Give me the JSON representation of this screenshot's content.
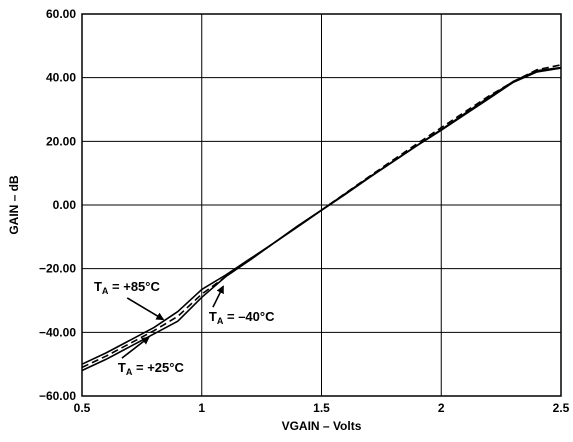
{
  "chart_data": {
    "type": "line",
    "title": "",
    "xlabel": "VGAIN – Volts",
    "ylabel": "GAIN – dB",
    "xlim": [
      0.5,
      2.5
    ],
    "ylim": [
      -60,
      60
    ],
    "x_ticks": [
      "0.5",
      "1",
      "1.5",
      "2",
      "2.5"
    ],
    "y_ticks": [
      "-60.00",
      "-40.00",
      "-20.00",
      "0.00",
      "20.00",
      "40.00",
      "60.00"
    ],
    "grid": true,
    "series": [
      {
        "name": "TA = +85°C",
        "style": "solid",
        "x": [
          0.5,
          0.6,
          0.7,
          0.8,
          0.9,
          1.0,
          1.1,
          1.2,
          1.3,
          1.4,
          1.5,
          1.6,
          1.7,
          1.8,
          1.9,
          2.0,
          2.1,
          2.2,
          2.3,
          2.4,
          2.5
        ],
        "y": [
          -50,
          -46.5,
          -42.5,
          -38.5,
          -33.5,
          -26.5,
          -22,
          -17,
          -12,
          -6.6,
          -1.6,
          3.6,
          8.8,
          13.8,
          18.8,
          23.7,
          28.8,
          33.9,
          38.8,
          42.2,
          43.2
        ]
      },
      {
        "name": "TA = +25°C",
        "style": "dashed",
        "x": [
          0.5,
          0.6,
          0.7,
          0.8,
          0.9,
          1.0,
          1.1,
          1.2,
          1.3,
          1.4,
          1.5,
          1.6,
          1.7,
          1.8,
          1.9,
          2.0,
          2.1,
          2.2,
          2.3,
          2.4,
          2.5
        ],
        "y": [
          -51,
          -47.5,
          -43.5,
          -39.5,
          -35,
          -28,
          -22.5,
          -17.2,
          -12,
          -6.8,
          -1.6,
          3.7,
          9,
          14.2,
          19.3,
          24.3,
          29.3,
          34.3,
          38.7,
          42.5,
          44
        ]
      },
      {
        "name": "TA = –40°C",
        "style": "solid",
        "x": [
          0.5,
          0.6,
          0.7,
          0.8,
          0.9,
          1.0,
          1.1,
          1.2,
          1.3,
          1.4,
          1.5,
          1.6,
          1.7,
          1.8,
          1.9,
          2.0,
          2.1,
          2.2,
          2.3,
          2.4,
          2.5
        ],
        "y": [
          -52,
          -48.5,
          -44.5,
          -40.5,
          -36.5,
          -29,
          -22.5,
          -17.4,
          -12,
          -6.9,
          -1.7,
          3.4,
          8.6,
          13.7,
          18.7,
          23.5,
          28.5,
          33.5,
          38.5,
          41.8,
          43
        ]
      }
    ],
    "annotations": [
      {
        "main": "T",
        "sub": "A",
        "rest": " = +85°C",
        "x": 0.55,
        "y": -27,
        "arrow_to": [
          0.84,
          -36
        ]
      },
      {
        "main": "T",
        "sub": "A",
        "rest": " = –40°C",
        "x": 1.03,
        "y": -36.5,
        "arrow_to": [
          1.09,
          -25.5
        ]
      },
      {
        "main": "T",
        "sub": "A",
        "rest": " = +25°C",
        "x": 0.65,
        "y": -52.5,
        "arrow_to": [
          0.78,
          -41.5
        ]
      }
    ]
  }
}
